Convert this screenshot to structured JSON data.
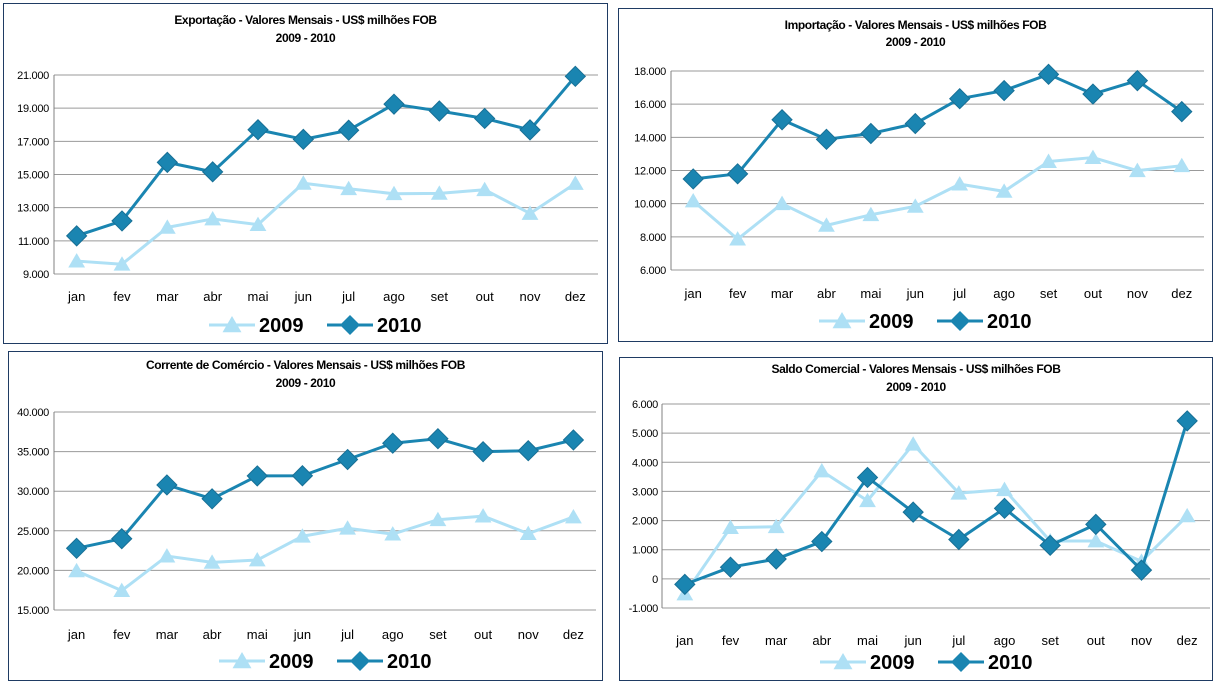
{
  "colors": {
    "s2009": "#aee0f5",
    "s2010": "#1a85b1",
    "grid": "#9a9a9a"
  },
  "chart_data": [
    {
      "type": "line",
      "title": "Exportação - Valores Mensais -  US$ milhões FOB",
      "subtitle": "2009 - 2010",
      "categories": [
        "jan",
        "fev",
        "mar",
        "abr",
        "mai",
        "jun",
        "jul",
        "ago",
        "set",
        "out",
        "nov",
        "dez"
      ],
      "y_ticks": [
        "9.000",
        "11.000",
        "13.000",
        "15.000",
        "17.000",
        "19.000",
        "21.000"
      ],
      "ylim": [
        9000,
        21000
      ],
      "series": [
        {
          "name": "2009",
          "values": [
            9780,
            9590,
            11810,
            12320,
            11980,
            14470,
            14140,
            13840,
            13860,
            14080,
            12650,
            14460
          ]
        },
        {
          "name": "2010",
          "values": [
            11300,
            12200,
            15730,
            15160,
            17700,
            17120,
            17670,
            19240,
            18830,
            18380,
            17690,
            20920
          ]
        }
      ]
    },
    {
      "type": "line",
      "title": "Importação - Valores Mensais -  US$ milhões FOB",
      "subtitle": "2009 - 2010",
      "categories": [
        "jan",
        "fev",
        "mar",
        "abr",
        "mai",
        "jun",
        "jul",
        "ago",
        "set",
        "out",
        "nov",
        "dez"
      ],
      "y_ticks": [
        "6.000",
        "8.000",
        "10.000",
        "12.000",
        "14.000",
        "16.000",
        "18.000"
      ],
      "ylim": [
        6000,
        18000
      ],
      "series": [
        {
          "name": "2009",
          "values": [
            10160,
            7860,
            10000,
            8690,
            9330,
            9840,
            11180,
            10740,
            12540,
            12780,
            11990,
            12290
          ]
        },
        {
          "name": "2010",
          "values": [
            11490,
            11800,
            15060,
            13880,
            14230,
            14830,
            16330,
            16820,
            17800,
            16610,
            17420,
            15550
          ]
        }
      ]
    },
    {
      "type": "line",
      "title": "Corrente de Comércio - Valores Mensais -  US$ milhões FOB",
      "subtitle": "2009 - 2010",
      "categories": [
        "jan",
        "fev",
        "mar",
        "abr",
        "mai",
        "jun",
        "jul",
        "ago",
        "set",
        "out",
        "nov",
        "dez"
      ],
      "y_ticks": [
        "15.000",
        "20.000",
        "25.000",
        "30.000",
        "35.000",
        "40.000"
      ],
      "ylim": [
        15000,
        40000
      ],
      "series": [
        {
          "name": "2009",
          "values": [
            19940,
            17450,
            21810,
            21010,
            21310,
            24310,
            25320,
            24580,
            26400,
            26860,
            24640,
            26750
          ]
        },
        {
          "name": "2010",
          "values": [
            22790,
            24000,
            30790,
            29040,
            31930,
            31950,
            34000,
            36060,
            36630,
            34990,
            35110,
            36470
          ]
        }
      ]
    },
    {
      "type": "line",
      "title": "Saldo Comercial - Valores Mensais - US$ milhões FOB",
      "subtitle": "2009 - 2010",
      "categories": [
        "jan",
        "fev",
        "mar",
        "abr",
        "mai",
        "jun",
        "jul",
        "ago",
        "set",
        "out",
        "nov",
        "dez"
      ],
      "y_ticks": [
        "-1.000",
        "0",
        "1.000",
        "2.000",
        "3.000",
        "4.000",
        "5.000",
        "6.000"
      ],
      "ylim": [
        -1000,
        6000
      ],
      "series": [
        {
          "name": "2009",
          "values": [
            -520,
            1760,
            1790,
            3700,
            2680,
            4620,
            2940,
            3060,
            1300,
            1300,
            600,
            2160
          ]
        },
        {
          "name": "2010",
          "values": [
            -190,
            400,
            680,
            1280,
            3480,
            2290,
            1350,
            2420,
            1150,
            1870,
            300,
            5420
          ]
        }
      ]
    }
  ]
}
